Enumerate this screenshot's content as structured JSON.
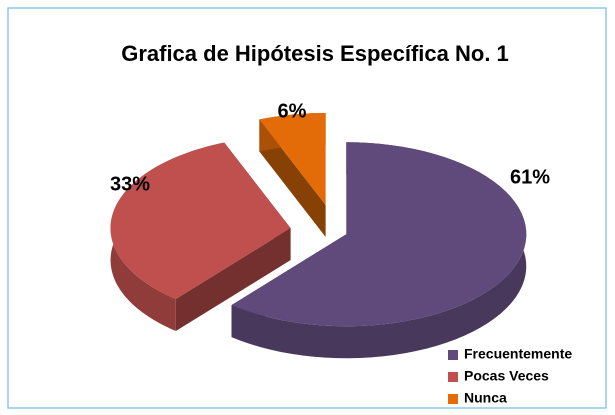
{
  "chart_data": {
    "type": "pie",
    "title": "Grafica de Hipótesis Específica No. 1",
    "categories": [
      "Frecuentemente",
      "Pocas Veces",
      "Nunca"
    ],
    "values": [
      61,
      33,
      6
    ],
    "value_labels": [
      "61%",
      "33%",
      "6%"
    ],
    "colors": [
      "#604a7b",
      "#c0504d",
      "#e36c09"
    ],
    "legend": "bottom-right"
  }
}
